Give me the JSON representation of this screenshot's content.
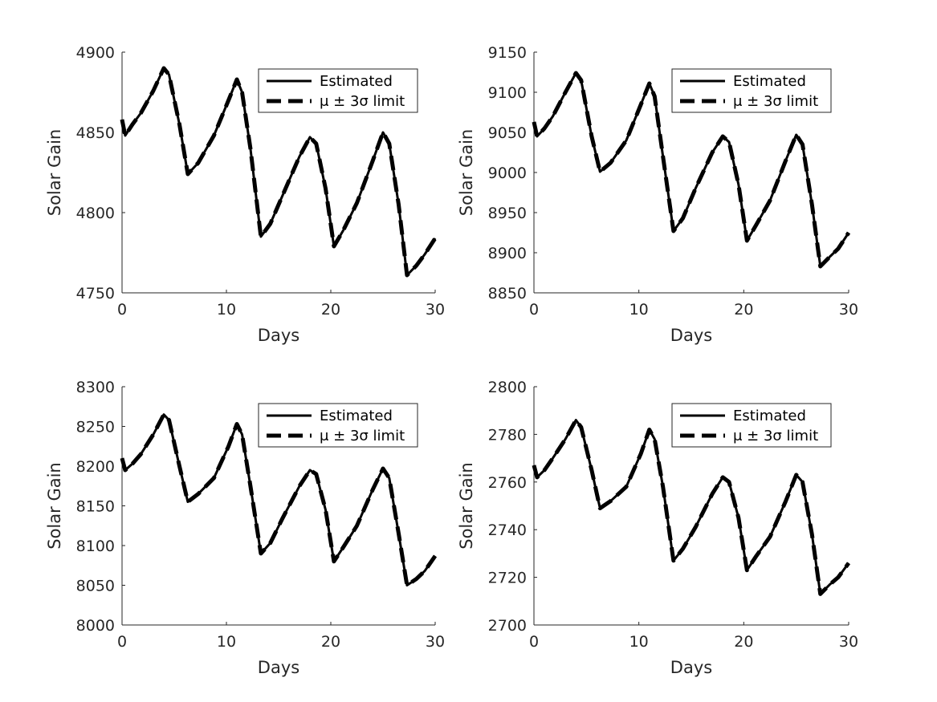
{
  "colors": {
    "line": "#000000",
    "axis": "#262626",
    "background": "#ffffff"
  },
  "chart_data": [
    {
      "type": "line",
      "xlabel": "Days",
      "ylabel": "Solar Gain",
      "xlim": [
        0,
        30
      ],
      "ylim": [
        4750,
        4900
      ],
      "xticks": [
        "0",
        "10",
        "20",
        "30"
      ],
      "yticks": [
        "4750",
        "4800",
        "4850",
        "4900"
      ],
      "legend": {
        "position": "top-right",
        "entries": [
          "Estimated",
          "μ ± 3σ limit"
        ]
      },
      "grid": false,
      "series": [
        {
          "name": "Estimated",
          "style": "solid",
          "x": [
            0,
            0.3,
            1,
            1.8,
            3,
            4,
            4.5,
            5.5,
            6.3,
            7.3,
            8.8,
            10.2,
            11,
            11.5,
            12.3,
            13.3,
            14.2,
            15.4,
            17,
            18,
            18.6,
            19.5,
            20.3,
            21.2,
            22.5,
            24,
            25,
            25.6,
            26.5,
            27.3,
            28.2,
            29,
            30
          ],
          "y": [
            4858,
            4848,
            4855,
            4862,
            4876,
            4890,
            4886,
            4855,
            4824,
            4831,
            4848,
            4870,
            4883,
            4875,
            4840,
            4785,
            4793,
            4811,
            4835,
            4847,
            4843,
            4815,
            4779,
            4789,
            4806,
            4832,
            4850,
            4843,
            4805,
            4761,
            4767,
            4774,
            4784
          ]
        },
        {
          "name": "μ ± 3σ limit",
          "style": "dashed",
          "x": [
            0,
            0.3,
            1,
            1.8,
            3,
            4,
            4.5,
            5.5,
            6.3,
            7.3,
            8.8,
            10.2,
            11,
            11.5,
            12.3,
            13.3,
            14.2,
            15.4,
            17,
            18,
            18.6,
            19.5,
            20.3,
            21.2,
            22.5,
            24,
            25,
            25.6,
            26.5,
            27.3,
            28.2,
            29,
            30
          ],
          "y": [
            4858,
            4848,
            4855,
            4862,
            4876,
            4890,
            4886,
            4855,
            4824,
            4831,
            4848,
            4870,
            4883,
            4875,
            4840,
            4785,
            4793,
            4811,
            4835,
            4847,
            4843,
            4815,
            4779,
            4789,
            4806,
            4832,
            4850,
            4843,
            4805,
            4761,
            4767,
            4774,
            4784
          ]
        }
      ]
    },
    {
      "type": "line",
      "xlabel": "Days",
      "ylabel": "Solar Gain",
      "xlim": [
        0,
        30
      ],
      "ylim": [
        8850,
        9150
      ],
      "xticks": [
        "0",
        "10",
        "20",
        "30"
      ],
      "yticks": [
        "8850",
        "8900",
        "8950",
        "9000",
        "9050",
        "9100",
        "9150"
      ],
      "legend": {
        "position": "top-right",
        "entries": [
          "Estimated",
          "μ ± 3σ limit"
        ]
      },
      "grid": false,
      "series": [
        {
          "name": "Estimated",
          "style": "solid",
          "x": [
            0,
            0.3,
            1,
            1.8,
            3,
            4,
            4.5,
            5.5,
            6.3,
            7.3,
            8.8,
            10.2,
            11,
            11.5,
            12.3,
            13.3,
            14.2,
            15.4,
            17,
            18,
            18.6,
            19.5,
            20.3,
            21.2,
            22.5,
            24,
            25,
            25.6,
            26.5,
            27.3,
            28.2,
            29,
            30
          ],
          "y": [
            9063,
            9045,
            9055,
            9070,
            9100,
            9124,
            9115,
            9045,
            9001,
            9012,
            9040,
            9085,
            9111,
            9095,
            9020,
            8927,
            8943,
            8980,
            9025,
            9045,
            9038,
            8985,
            8915,
            8935,
            8965,
            9015,
            9047,
            9035,
            8960,
            8883,
            8895,
            8905,
            8925
          ]
        },
        {
          "name": "μ ± 3σ limit",
          "style": "dashed",
          "x": [
            0,
            0.3,
            1,
            1.8,
            3,
            4,
            4.5,
            5.5,
            6.3,
            7.3,
            8.8,
            10.2,
            11,
            11.5,
            12.3,
            13.3,
            14.2,
            15.4,
            17,
            18,
            18.6,
            19.5,
            20.3,
            21.2,
            22.5,
            24,
            25,
            25.6,
            26.5,
            27.3,
            28.2,
            29,
            30
          ],
          "y": [
            9063,
            9045,
            9055,
            9070,
            9100,
            9124,
            9115,
            9045,
            9001,
            9012,
            9040,
            9085,
            9111,
            9095,
            9020,
            8927,
            8943,
            8980,
            9025,
            9045,
            9038,
            8985,
            8915,
            8935,
            8965,
            9015,
            9047,
            9035,
            8960,
            8883,
            8895,
            8905,
            8925
          ]
        }
      ]
    },
    {
      "type": "line",
      "xlabel": "Days",
      "ylabel": "Solar Gain",
      "xlim": [
        0,
        30
      ],
      "ylim": [
        8000,
        8300
      ],
      "xticks": [
        "0",
        "10",
        "20",
        "30"
      ],
      "yticks": [
        "8000",
        "8050",
        "8100",
        "8150",
        "8200",
        "8250",
        "8300"
      ],
      "legend": {
        "position": "top-right",
        "entries": [
          "Estimated",
          "μ ± 3σ limit"
        ]
      },
      "grid": false,
      "series": [
        {
          "name": "Estimated",
          "style": "solid",
          "x": [
            0,
            0.3,
            1,
            1.8,
            3,
            4,
            4.5,
            5.5,
            6.3,
            7.3,
            8.8,
            10.2,
            11,
            11.5,
            12.3,
            13.3,
            14.2,
            15.4,
            17,
            18,
            18.6,
            19.5,
            20.3,
            21.2,
            22.5,
            24,
            25,
            25.6,
            26.5,
            27.3,
            28.2,
            29,
            30
          ],
          "y": [
            8210,
            8195,
            8203,
            8215,
            8240,
            8265,
            8258,
            8200,
            8155,
            8165,
            8185,
            8225,
            8253,
            8240,
            8175,
            8090,
            8103,
            8135,
            8175,
            8195,
            8190,
            8145,
            8080,
            8098,
            8125,
            8170,
            8197,
            8185,
            8115,
            8050,
            8058,
            8068,
            8087
          ]
        },
        {
          "name": "μ ± 3σ limit",
          "style": "dashed",
          "x": [
            0,
            0.3,
            1,
            1.8,
            3,
            4,
            4.5,
            5.5,
            6.3,
            7.3,
            8.8,
            10.2,
            11,
            11.5,
            12.3,
            13.3,
            14.2,
            15.4,
            17,
            18,
            18.6,
            19.5,
            20.3,
            21.2,
            22.5,
            24,
            25,
            25.6,
            26.5,
            27.3,
            28.2,
            29,
            30
          ],
          "y": [
            8210,
            8195,
            8203,
            8215,
            8240,
            8265,
            8258,
            8200,
            8155,
            8165,
            8185,
            8225,
            8253,
            8240,
            8175,
            8090,
            8103,
            8135,
            8175,
            8195,
            8190,
            8145,
            8080,
            8098,
            8125,
            8170,
            8197,
            8185,
            8115,
            8050,
            8058,
            8068,
            8087
          ]
        }
      ]
    },
    {
      "type": "line",
      "xlabel": "Days",
      "ylabel": "Solar Gain",
      "xlim": [
        0,
        30
      ],
      "ylim": [
        2700,
        2800
      ],
      "xticks": [
        "0",
        "10",
        "20",
        "30"
      ],
      "yticks": [
        "2700",
        "2720",
        "2740",
        "2760",
        "2780",
        "2800"
      ],
      "legend": {
        "position": "top-right",
        "entries": [
          "Estimated",
          "μ ± 3σ limit"
        ]
      },
      "grid": false,
      "series": [
        {
          "name": "Estimated",
          "style": "solid",
          "x": [
            0,
            0.3,
            1,
            1.8,
            3,
            4,
            4.5,
            5.5,
            6.3,
            7.3,
            8.8,
            10.2,
            11,
            11.5,
            12.3,
            13.3,
            14.2,
            15.4,
            17,
            18,
            18.6,
            19.5,
            20.3,
            21.2,
            22.5,
            24,
            25,
            25.6,
            26.5,
            27.3,
            28.2,
            29,
            30
          ],
          "y": [
            2767,
            2762,
            2765,
            2770,
            2778,
            2786,
            2783,
            2765,
            2749,
            2752,
            2758,
            2772,
            2782,
            2778,
            2758,
            2727,
            2732,
            2741,
            2755,
            2762,
            2760,
            2745,
            2723,
            2729,
            2737,
            2752,
            2763,
            2760,
            2738,
            2713,
            2717,
            2720,
            2726
          ]
        },
        {
          "name": "μ ± 3σ limit",
          "style": "dashed",
          "x": [
            0,
            0.3,
            1,
            1.8,
            3,
            4,
            4.5,
            5.5,
            6.3,
            7.3,
            8.8,
            10.2,
            11,
            11.5,
            12.3,
            13.3,
            14.2,
            15.4,
            17,
            18,
            18.6,
            19.5,
            20.3,
            21.2,
            22.5,
            24,
            25,
            25.6,
            26.5,
            27.3,
            28.2,
            29,
            30
          ],
          "y": [
            2767,
            2762,
            2765,
            2770,
            2778,
            2786,
            2783,
            2765,
            2749,
            2752,
            2758,
            2772,
            2782,
            2778,
            2758,
            2727,
            2732,
            2741,
            2755,
            2762,
            2760,
            2745,
            2723,
            2729,
            2737,
            2752,
            2763,
            2760,
            2738,
            2713,
            2717,
            2720,
            2726
          ]
        }
      ]
    }
  ]
}
